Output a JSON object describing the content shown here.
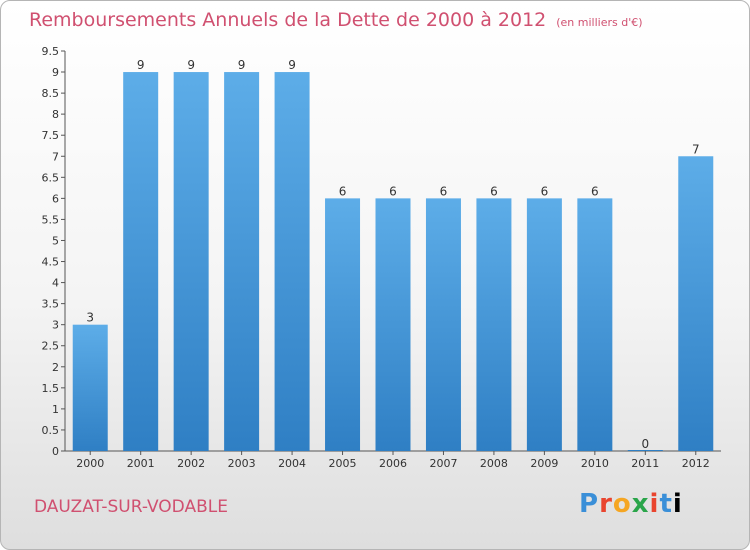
{
  "header": {
    "title": "Remboursements Annuels de la Dette de 2000 à 2012",
    "unit": "(en milliers d'€)"
  },
  "footer": {
    "commune": "DAUZAT-SUR-VODABLE",
    "logo_letters": [
      "P",
      "r",
      "o",
      "x",
      "i",
      "t",
      "i"
    ]
  },
  "colors": {
    "title": "#d05070",
    "bar_light": "#5dade8",
    "bar_dark": "#2f7fc4"
  },
  "chart_data": {
    "type": "bar",
    "title": "Remboursements Annuels de la Dette de 2000 à 2012",
    "categories": [
      "2000",
      "2001",
      "2002",
      "2003",
      "2004",
      "2005",
      "2006",
      "2007",
      "2008",
      "2009",
      "2010",
      "2011",
      "2012"
    ],
    "values": [
      3,
      9,
      9,
      9,
      9,
      6,
      6,
      6,
      6,
      6,
      6,
      0,
      7
    ],
    "value_labels": [
      "3",
      "9",
      "9",
      "9",
      "9",
      "6",
      "6",
      "6",
      "6",
      "6",
      "6",
      "0",
      "7"
    ],
    "yticks": [
      "0",
      "0.5",
      "1",
      "1.5",
      "2",
      "2.5",
      "3",
      "3.5",
      "4",
      "4.5",
      "5",
      "5.5",
      "6",
      "6.5",
      "7",
      "7.5",
      "8",
      "8.5",
      "9",
      "9.5"
    ],
    "ylim": [
      0,
      9.5
    ],
    "xlabel": "",
    "ylabel": "",
    "grid": false,
    "legend": "none"
  }
}
